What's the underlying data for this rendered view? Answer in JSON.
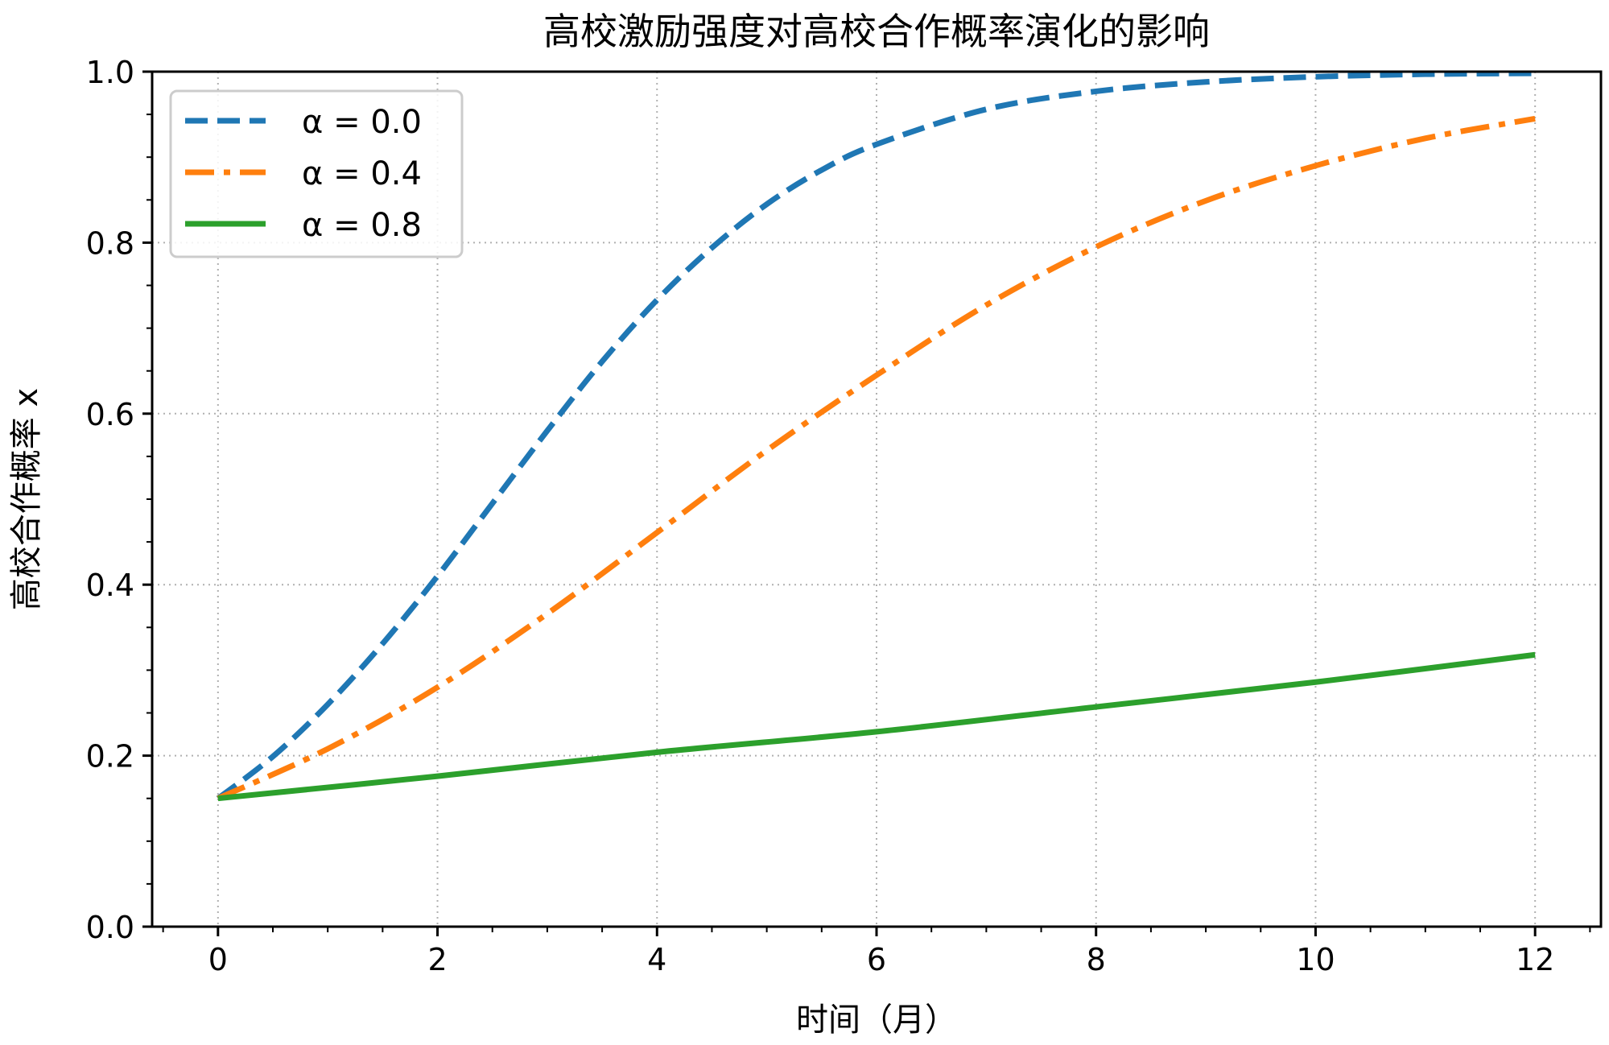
{
  "chart_data": {
    "type": "line",
    "title": "高校激励强度对高校合作概率演化的影响",
    "xlabel": "时间（月）",
    "ylabel": "高校合作概率  x",
    "xlim": [
      -0.6,
      12.6
    ],
    "ylim": [
      0,
      1
    ],
    "xticks": [
      0,
      2,
      4,
      6,
      8,
      10,
      12
    ],
    "xtick_labels": [
      "0",
      "2",
      "4",
      "6",
      "8",
      "10",
      "12"
    ],
    "yticks": [
      0,
      0.2,
      0.4,
      0.6,
      0.8,
      1.0
    ],
    "ytick_labels": [
      "0.0",
      "0.2",
      "0.4",
      "0.6",
      "0.8",
      "1.0"
    ],
    "grid": true,
    "legend_position": "top-left",
    "series": [
      {
        "name": "α = 0.0",
        "color": "#1f77b4",
        "style": "dashed",
        "x": [
          0,
          0.5,
          1,
          1.5,
          2,
          2.5,
          3,
          3.5,
          4,
          4.5,
          5,
          5.5,
          6,
          7,
          8,
          9,
          10,
          11,
          12
        ],
        "y": [
          0.15,
          0.199,
          0.26,
          0.331,
          0.41,
          0.495,
          0.58,
          0.661,
          0.733,
          0.794,
          0.845,
          0.885,
          0.915,
          0.956,
          0.977,
          0.988,
          0.994,
          0.997,
          0.998
        ]
      },
      {
        "name": "α = 0.4",
        "color": "#ff7f0e",
        "style": "dashdot",
        "x": [
          0,
          1,
          2,
          3,
          4,
          5,
          6,
          7,
          8,
          9,
          10,
          11,
          12
        ],
        "y": [
          0.15,
          0.208,
          0.28,
          0.366,
          0.461,
          0.557,
          0.645,
          0.727,
          0.795,
          0.849,
          0.89,
          0.922,
          0.945
        ]
      },
      {
        "name": "α = 0.8",
        "color": "#2ca02c",
        "style": "solid",
        "x": [
          0,
          2,
          4,
          6,
          8,
          10,
          12
        ],
        "y": [
          0.15,
          0.176,
          0.204,
          0.228,
          0.257,
          0.286,
          0.318
        ]
      }
    ]
  }
}
